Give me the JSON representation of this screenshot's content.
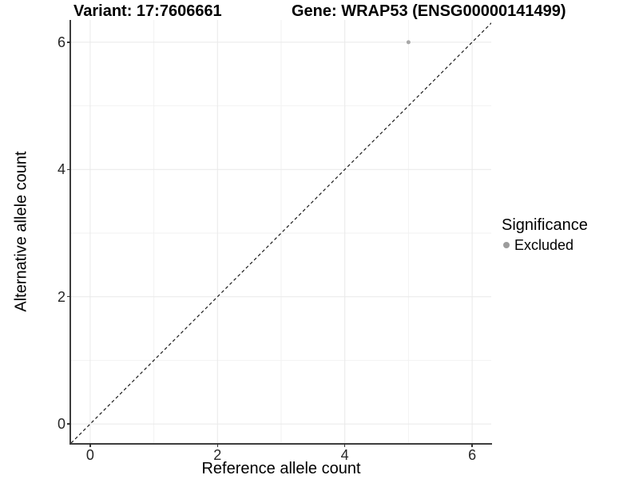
{
  "chart_data": {
    "type": "scatter",
    "titles": {
      "left": "Variant: 17:7606661",
      "right": "Gene: WRAP53 (ENSG00000141499)"
    },
    "xlabel": "Reference allele count",
    "ylabel": "Alternative allele count",
    "xlim": [
      -0.3,
      6.3
    ],
    "ylim": [
      -0.3,
      6.35
    ],
    "xticks": [
      0,
      2,
      4,
      6
    ],
    "yticks": [
      0,
      2,
      4,
      6
    ],
    "minor_grid_x": [
      1,
      3,
      5
    ],
    "minor_grid_y": [
      1,
      3,
      5
    ],
    "grid": "major+minor",
    "identity_line": {
      "type": "abline",
      "slope": 1,
      "intercept": 0,
      "style": "dashed",
      "color": "#1a1a1a"
    },
    "series": [
      {
        "name": "Excluded",
        "color": "#a8a8a8",
        "marker": "circle",
        "size": 5,
        "points": [
          {
            "x": 5,
            "y": 6
          }
        ]
      }
    ],
    "legend": {
      "title": "Significance",
      "position": "right",
      "items": [
        {
          "label": "Excluded",
          "color": "#9c9c9c"
        }
      ]
    },
    "colors": {
      "grid_major": "#e9e9e9",
      "grid_minor": "#f2f2f2",
      "axis_line": "#3d3d3d",
      "tick": "#333333",
      "tick_label": "#262626",
      "background": "#ffffff"
    }
  }
}
